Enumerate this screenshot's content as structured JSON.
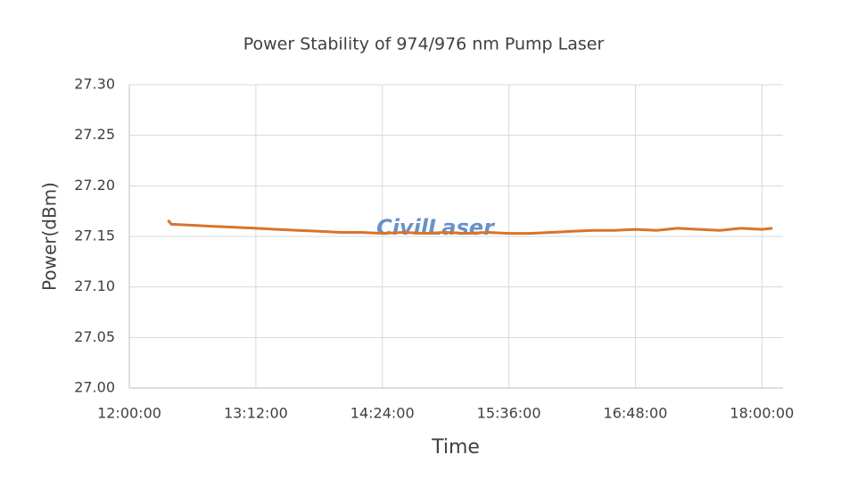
{
  "chart_data": {
    "type": "line",
    "title": "Power Stability of 974/976 nm Pump Laser",
    "x_label": "Time",
    "y_label": "Power(dBm)",
    "watermark": "CivilLaser",
    "x": [
      "12:22:00",
      "12:24:00",
      "12:36:00",
      "12:48:00",
      "13:00:00",
      "13:12:00",
      "13:24:00",
      "13:36:00",
      "13:48:00",
      "14:00:00",
      "14:12:00",
      "14:24:00",
      "14:36:00",
      "14:48:00",
      "15:00:00",
      "15:12:00",
      "15:24:00",
      "15:36:00",
      "15:48:00",
      "16:00:00",
      "16:12:00",
      "16:24:00",
      "16:36:00",
      "16:48:00",
      "17:00:00",
      "17:12:00",
      "17:24:00",
      "17:36:00",
      "17:48:00",
      "18:00:00",
      "18:06:00"
    ],
    "series": [
      {
        "name": "Power",
        "color": "#d9742a",
        "values": [
          27.166,
          27.162,
          27.161,
          27.16,
          27.159,
          27.158,
          27.157,
          27.156,
          27.155,
          27.154,
          27.154,
          27.153,
          27.154,
          27.153,
          27.154,
          27.153,
          27.154,
          27.153,
          27.153,
          27.154,
          27.155,
          27.156,
          27.156,
          27.157,
          27.156,
          27.158,
          27.157,
          27.156,
          27.158,
          27.157,
          27.158
        ]
      }
    ],
    "xlim": [
      "12:00:00",
      "18:12:00"
    ],
    "xticks": [
      "12:00:00",
      "13:12:00",
      "14:24:00",
      "15:36:00",
      "16:48:00",
      "18:00:00"
    ],
    "ylim": [
      27.0,
      27.3
    ],
    "yticks": [
      {
        "value": 27.0,
        "label": "27.00"
      },
      {
        "value": 27.05,
        "label": "27.05"
      },
      {
        "value": 27.1,
        "label": "27.10"
      },
      {
        "value": 27.15,
        "label": "27.15"
      },
      {
        "value": 27.2,
        "label": "27.20"
      },
      {
        "value": 27.25,
        "label": "27.25"
      },
      {
        "value": 27.3,
        "label": "27.30"
      }
    ],
    "grid": true
  }
}
